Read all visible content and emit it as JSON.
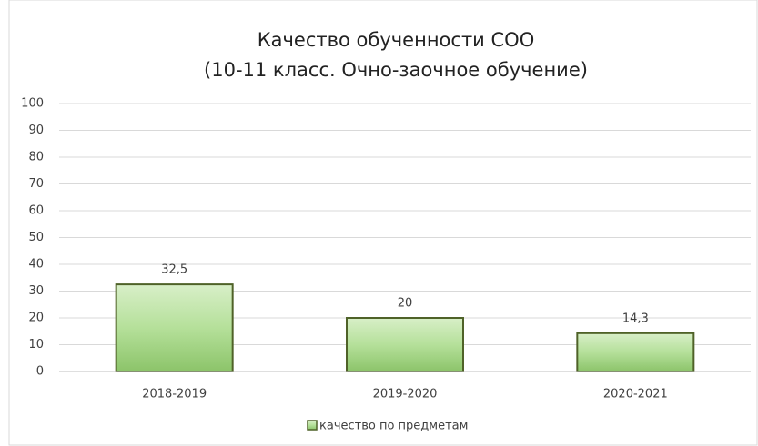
{
  "chart_data": {
    "type": "bar",
    "title": "Качество обученности СОО",
    "subtitle": "(10-11 класс. Очно-заочное обучение)",
    "categories": [
      "2018-2019",
      "2019-2020",
      "2020-2021"
    ],
    "series": [
      {
        "name": "качество по предметам",
        "color": "#a9d88c",
        "values": [
          32.5,
          20,
          14.3
        ],
        "value_labels": [
          "32,5",
          "20",
          "14,3"
        ]
      }
    ],
    "ylim": [
      0,
      100
    ],
    "yticks": [
      0,
      10,
      20,
      30,
      40,
      50,
      60,
      70,
      80,
      90,
      100
    ],
    "grid": true,
    "legend": "bottom"
  }
}
